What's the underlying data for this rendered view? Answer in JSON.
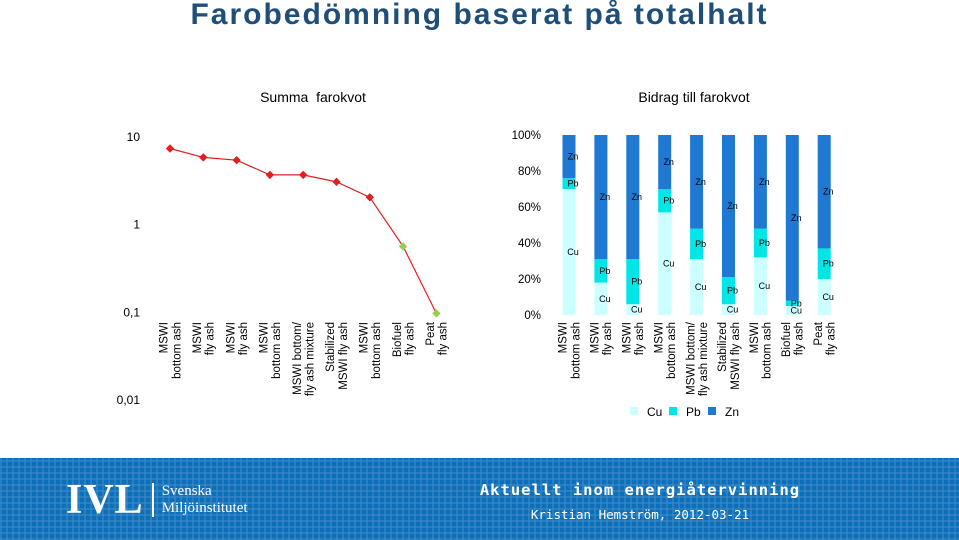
{
  "header": {
    "title": "Farobedömning baserat på totalhalt"
  },
  "chart_data": [
    {
      "type": "line",
      "title": "Summa  farokvot",
      "yscale": "log",
      "ylim": [
        0.01,
        10
      ],
      "yticks": [
        "10",
        "1",
        "0,1",
        "0,01"
      ],
      "grid": false,
      "categories": [
        [
          "MSWI",
          "bottom ash"
        ],
        [
          "MSWI",
          "fly ash"
        ],
        [
          "MSWI",
          "fly ash"
        ],
        [
          "MSWI",
          "bottom ash"
        ],
        [
          "MSWI bottom/",
          "fly ash mixture"
        ],
        [
          "Stabilized",
          "MSWI fly ash"
        ],
        [
          "MSWI",
          "bottom ash"
        ],
        [
          "Biofuel",
          "fly ash"
        ],
        [
          "Peat",
          "fly ash"
        ]
      ],
      "values": [
        7.2,
        5.7,
        5.3,
        3.6,
        3.6,
        3.0,
        2.0,
        0.55,
        0.095
      ],
      "marker_colors": [
        "#e02020",
        "#e02020",
        "#e02020",
        "#e02020",
        "#e02020",
        "#e02020",
        "#e02020",
        "#92d050",
        "#92d050"
      ]
    },
    {
      "type": "bar",
      "stacked": "percent",
      "title": "Bidrag till farokvot",
      "yticks": [
        "100%",
        "80%",
        "60%",
        "40%",
        "20%",
        "0%"
      ],
      "categories": [
        [
          "MSWI",
          "bottom ash"
        ],
        [
          "MSWI",
          "fly ash"
        ],
        [
          "MSWI",
          "fly ash"
        ],
        [
          "MSWI",
          "bottom ash"
        ],
        [
          "MSWI bottom/",
          "fly ash mixture"
        ],
        [
          "Stabilized",
          "MSWI fly ash"
        ],
        [
          "MSWI",
          "bottom ash"
        ],
        [
          "Biofuel",
          "fly ash"
        ],
        [
          "Peat",
          "fly ash"
        ]
      ],
      "series": [
        {
          "name": "Cu",
          "color": "#ccffff",
          "values": [
            70,
            18,
            6,
            57,
            31,
            6,
            32,
            5,
            20
          ]
        },
        {
          "name": "Pb",
          "color": "#00e6e6",
          "values": [
            6,
            13,
            25,
            13,
            17,
            15,
            16,
            3,
            17
          ]
        },
        {
          "name": "Zn",
          "color": "#1f78d1",
          "values": [
            24,
            69,
            69,
            30,
            52,
            79,
            52,
            92,
            63
          ]
        }
      ],
      "legend": "bottom"
    }
  ],
  "footer": {
    "logo_text": "IVL",
    "logo_name_line1": "Svenska",
    "logo_name_line2": "Miljöinstitutet",
    "title": "Aktuellt inom energiåtervinning",
    "subtitle": "Kristian Hemström, 2012-03-21"
  }
}
